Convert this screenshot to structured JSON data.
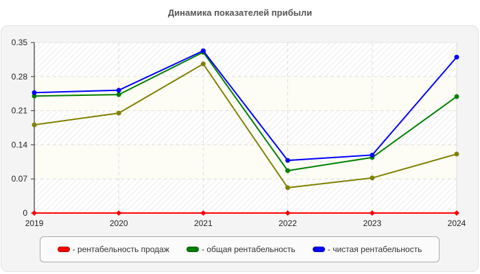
{
  "chart_data": {
    "type": "line",
    "title": "Динамика показателей прибыли",
    "xlabel": "",
    "ylabel": "",
    "categories": [
      "2019",
      "2020",
      "2021",
      "2022",
      "2023",
      "2024"
    ],
    "yticks": [
      "0",
      "0.07",
      "0.14",
      "0.21",
      "0.28",
      "0.35"
    ],
    "ylim": [
      0,
      0.35
    ],
    "grid": true,
    "legend_position": "bottom",
    "series": [
      {
        "name": "рентабельность продаж",
        "color": "#ff0000",
        "marker": "diamond",
        "values": [
          0,
          0,
          0,
          0,
          0,
          0
        ],
        "in_legend": true
      },
      {
        "name": "общая рентабельность",
        "color": "#008000",
        "marker": "circle",
        "values": [
          0.24,
          0.243,
          0.33,
          0.087,
          0.114,
          0.239
        ],
        "in_legend": true
      },
      {
        "name": "чистая рентабельность",
        "color": "#0000ff",
        "marker": "circle",
        "values": [
          0.247,
          0.252,
          0.333,
          0.108,
          0.119,
          0.32
        ],
        "in_legend": true
      },
      {
        "name": "",
        "color": "#808000",
        "marker": "circle",
        "values": [
          0.181,
          0.205,
          0.306,
          0.052,
          0.072,
          0.121
        ],
        "in_legend": false
      }
    ]
  },
  "legend": {
    "items": [
      {
        "label": "- рентабельность продаж",
        "color": "#ff0000"
      },
      {
        "label": "- общая рентабельность",
        "color": "#008000"
      },
      {
        "label": "- чистая рентабельность",
        "color": "#0000ff"
      }
    ]
  }
}
